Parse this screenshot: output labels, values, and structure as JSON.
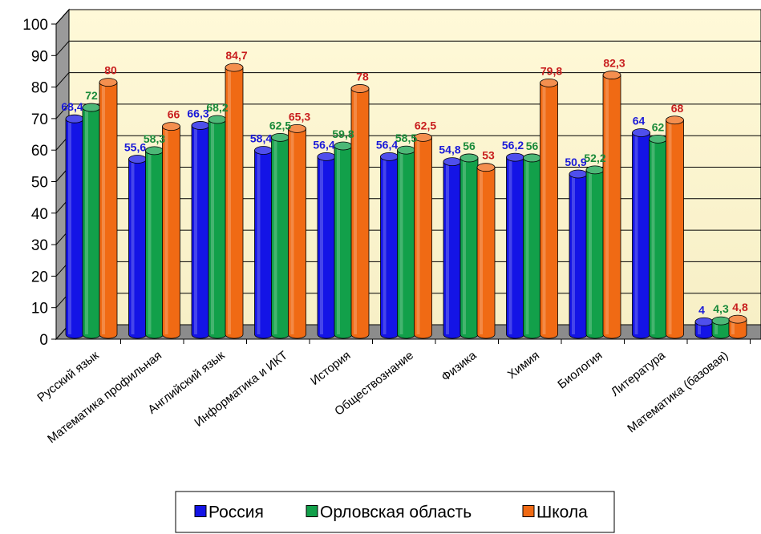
{
  "chart_data": {
    "type": "bar",
    "title": "",
    "xlabel": "",
    "ylabel": "",
    "ylim": [
      0,
      100
    ],
    "yticks": [
      0,
      10,
      20,
      30,
      40,
      50,
      60,
      70,
      80,
      90,
      100
    ],
    "grid": true,
    "legend_position": "bottom",
    "categories": [
      "Русский язык",
      "Математика профильная",
      "Английский язык",
      "Информатика и ИКТ",
      "История",
      "Обществознание",
      "Физика",
      "Химия",
      "Биология",
      "Литература",
      "Математика (базовая)"
    ],
    "series": [
      {
        "name": "Россия",
        "color": "#1414e6",
        "label_color": "#1a1ad8",
        "values": [
          68.4,
          55.6,
          66.3,
          58.4,
          56.4,
          56.4,
          54.8,
          56.2,
          50.9,
          64,
          4
        ],
        "labels": [
          "68,4",
          "55,6",
          "66,3",
          "58,4",
          "56,4",
          "56,4",
          "54,8",
          "56,2",
          "50,9",
          "64",
          "4"
        ]
      },
      {
        "name": "Орловская область",
        "color": "#12a04a",
        "label_color": "#1a8a3a",
        "values": [
          72,
          58.3,
          68.2,
          62.5,
          59.8,
          58.5,
          56,
          56,
          52.2,
          62,
          4.3
        ],
        "labels": [
          "72",
          "58,3",
          "68,2",
          "62,5",
          "59,8",
          "58,5",
          "56",
          "56",
          "52,2",
          "62",
          "4,3"
        ]
      },
      {
        "name": "Школа",
        "color": "#f06a14",
        "label_color": "#c81e1e",
        "values": [
          80,
          66,
          84.7,
          65.3,
          78,
          62.5,
          53,
          79.8,
          82.3,
          68,
          4.8
        ],
        "labels": [
          "80",
          "66",
          "84,7",
          "65,3",
          "78",
          "62,5",
          "53",
          "79,8",
          "82,3",
          "68",
          "4,8"
        ]
      }
    ]
  }
}
